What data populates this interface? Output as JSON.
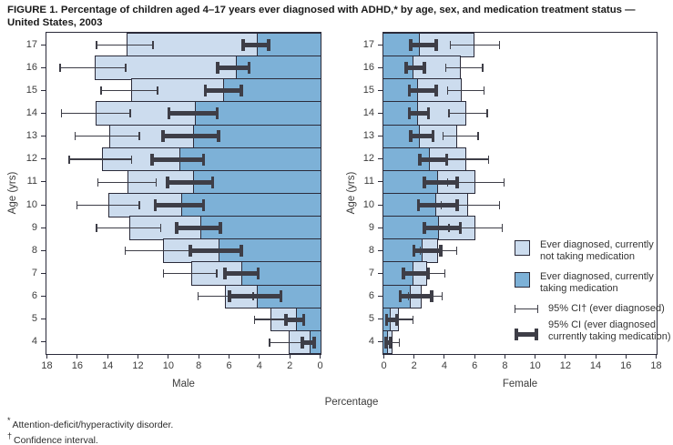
{
  "figure": {
    "title_line1": "FIGURE 1. Percentage of children aged 4–17 years ever diagnosed with ADHD,* by age, sex, and medication treatment status —",
    "title_line2": "United States, 2003",
    "shared_xlabel": "Percentage",
    "footnotes": [
      {
        "symbol": "*",
        "text": "Attention-deficit/hyperactivity disorder."
      },
      {
        "symbol": "†",
        "text": "Confidence interval."
      }
    ]
  },
  "colors": {
    "not_taking_medication": "#ccdcee",
    "taking_medication": "#7db1d7",
    "frame": "#2b2b3a",
    "error_bar": "#3e3e47"
  },
  "legend": {
    "items": [
      {
        "key": "not-taking",
        "label": "Ever diagnosed, currently\nnot taking medication"
      },
      {
        "key": "taking",
        "label": "Ever diagnosed, currently\ntaking medication"
      },
      {
        "key": "thin-ci",
        "label": "95% CI† (ever diagnosed)"
      },
      {
        "key": "thick-ci",
        "label": "95% CI (ever diagnosed,\ncurrently taking medication)"
      }
    ]
  },
  "chart_data": [
    {
      "type": "bar",
      "panel": "Male",
      "orientation": "horizontal",
      "stacked": true,
      "zero_axis": "right",
      "xlabel": "Male",
      "ylabel": "Age (yrs)",
      "xlim": [
        0,
        18
      ],
      "x_ticks": [
        18,
        16,
        14,
        12,
        10,
        8,
        6,
        4,
        2,
        0
      ],
      "series_names": [
        "Ever diagnosed, currently not taking medication",
        "Ever diagnosed, currently taking medication"
      ],
      "rows": [
        {
          "age": 17,
          "ever_diagnosed": 12.8,
          "ever_ci": [
            11.0,
            14.8
          ],
          "taking_medication": 4.2,
          "medication_ci": [
            3.3,
            5.2
          ]
        },
        {
          "age": 16,
          "ever_diagnosed": 14.9,
          "ever_ci": [
            12.8,
            17.2
          ],
          "taking_medication": 5.6,
          "medication_ci": [
            4.6,
            6.9
          ]
        },
        {
          "age": 15,
          "ever_diagnosed": 12.5,
          "ever_ci": [
            10.7,
            14.5
          ],
          "taking_medication": 6.4,
          "medication_ci": [
            5.1,
            7.7
          ]
        },
        {
          "age": 14,
          "ever_diagnosed": 14.8,
          "ever_ci": [
            12.5,
            17.1
          ],
          "taking_medication": 8.3,
          "medication_ci": [
            6.7,
            10.1
          ]
        },
        {
          "age": 13,
          "ever_diagnosed": 13.9,
          "ever_ci": [
            11.9,
            16.2
          ],
          "taking_medication": 8.4,
          "medication_ci": [
            6.6,
            10.5
          ]
        },
        {
          "age": 12,
          "ever_diagnosed": 14.4,
          "ever_ci": [
            12.4,
            16.6
          ],
          "taking_medication": 9.3,
          "medication_ci": [
            7.6,
            11.2
          ]
        },
        {
          "age": 11,
          "ever_diagnosed": 12.7,
          "ever_ci": [
            10.8,
            14.7
          ],
          "taking_medication": 8.4,
          "medication_ci": [
            7.0,
            10.2
          ]
        },
        {
          "age": 10,
          "ever_diagnosed": 14.0,
          "ever_ci": [
            11.9,
            16.1
          ],
          "taking_medication": 9.2,
          "medication_ci": [
            7.6,
            11.0
          ]
        },
        {
          "age": 9,
          "ever_diagnosed": 12.6,
          "ever_ci": [
            10.5,
            14.8
          ],
          "taking_medication": 7.9,
          "medication_ci": [
            6.5,
            9.6
          ]
        },
        {
          "age": 8,
          "ever_diagnosed": 10.4,
          "ever_ci": [
            8.6,
            12.9
          ],
          "taking_medication": 6.7,
          "medication_ci": [
            5.1,
            8.7
          ]
        },
        {
          "age": 7,
          "ever_diagnosed": 8.5,
          "ever_ci": [
            6.8,
            10.4
          ],
          "taking_medication": 5.2,
          "medication_ci": [
            4.0,
            6.4
          ]
        },
        {
          "age": 6,
          "ever_diagnosed": 6.3,
          "ever_ci": [
            4.4,
            8.1
          ],
          "taking_medication": 4.2,
          "medication_ci": [
            2.5,
            6.1
          ]
        },
        {
          "age": 5,
          "ever_diagnosed": 3.3,
          "ever_ci": [
            2.3,
            4.4
          ],
          "taking_medication": 1.6,
          "medication_ci": [
            1.0,
            2.4
          ]
        },
        {
          "age": 4,
          "ever_diagnosed": 2.1,
          "ever_ci": [
            1.2,
            3.4
          ],
          "taking_medication": 0.7,
          "medication_ci": [
            0.3,
            1.3
          ]
        }
      ]
    },
    {
      "type": "bar",
      "panel": "Female",
      "orientation": "horizontal",
      "stacked": true,
      "zero_axis": "left",
      "xlabel": "Female",
      "ylabel": "Age (yrs)",
      "xlim": [
        0,
        18
      ],
      "x_ticks": [
        0,
        2,
        4,
        6,
        8,
        10,
        12,
        14,
        16,
        18
      ],
      "series_names": [
        "Ever diagnosed, currently not taking medication",
        "Ever diagnosed, currently taking medication"
      ],
      "rows": [
        {
          "age": 17,
          "ever_diagnosed": 6.0,
          "ever_ci": [
            4.4,
            7.7
          ],
          "taking_medication": 2.4,
          "medication_ci": [
            1.7,
            3.6
          ]
        },
        {
          "age": 16,
          "ever_diagnosed": 5.1,
          "ever_ci": [
            4.1,
            6.6
          ],
          "taking_medication": 2.0,
          "medication_ci": [
            1.4,
            2.8
          ]
        },
        {
          "age": 15,
          "ever_diagnosed": 5.2,
          "ever_ci": [
            4.2,
            6.7
          ],
          "taking_medication": 2.3,
          "medication_ci": [
            1.6,
            3.6
          ]
        },
        {
          "age": 14,
          "ever_diagnosed": 5.5,
          "ever_ci": [
            4.3,
            6.9
          ],
          "taking_medication": 2.3,
          "medication_ci": [
            1.6,
            3.1
          ]
        },
        {
          "age": 13,
          "ever_diagnosed": 4.9,
          "ever_ci": [
            3.9,
            6.3
          ],
          "taking_medication": 2.4,
          "medication_ci": [
            1.7,
            3.4
          ]
        },
        {
          "age": 12,
          "ever_diagnosed": 5.5,
          "ever_ci": [
            4.1,
            7.0
          ],
          "taking_medication": 3.1,
          "medication_ci": [
            2.3,
            4.3
          ]
        },
        {
          "age": 11,
          "ever_diagnosed": 6.1,
          "ever_ci": [
            4.2,
            8.0
          ],
          "taking_medication": 3.6,
          "medication_ci": [
            2.6,
            5.0
          ]
        },
        {
          "age": 10,
          "ever_diagnosed": 5.6,
          "ever_ci": [
            3.8,
            7.7
          ],
          "taking_medication": 3.5,
          "medication_ci": [
            2.2,
            5.0
          ]
        },
        {
          "age": 9,
          "ever_diagnosed": 6.1,
          "ever_ci": [
            4.3,
            7.9
          ],
          "taking_medication": 3.7,
          "medication_ci": [
            2.6,
            5.2
          ]
        },
        {
          "age": 8,
          "ever_diagnosed": 3.6,
          "ever_ci": [
            2.4,
            4.9
          ],
          "taking_medication": 2.6,
          "medication_ci": [
            1.9,
            3.9
          ]
        },
        {
          "age": 7,
          "ever_diagnosed": 2.9,
          "ever_ci": [
            1.9,
            4.1
          ],
          "taking_medication": 2.0,
          "medication_ci": [
            1.2,
            3.1
          ]
        },
        {
          "age": 6,
          "ever_diagnosed": 2.5,
          "ever_ci": [
            1.6,
            3.9
          ],
          "taking_medication": 1.8,
          "medication_ci": [
            1.0,
            3.3
          ]
        },
        {
          "age": 5,
          "ever_diagnosed": 1.0,
          "ever_ci": [
            0.4,
            2.0
          ],
          "taking_medication": 0.5,
          "medication_ci": [
            0.1,
            1.0
          ]
        },
        {
          "age": 4,
          "ever_diagnosed": 0.6,
          "ever_ci": [
            0.25,
            1.1
          ],
          "taking_medication": 0.3,
          "medication_ci": [
            0.05,
            0.55
          ]
        }
      ]
    }
  ]
}
